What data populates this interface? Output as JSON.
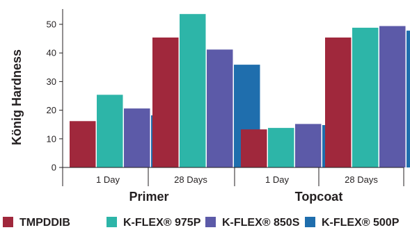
{
  "chart_data": {
    "type": "bar",
    "title": "",
    "ylabel": "König Hardness",
    "xlabel": "",
    "ylim": [
      0,
      56
    ],
    "yticks": [
      0,
      10,
      20,
      30,
      40,
      50
    ],
    "groups": [
      {
        "name": "Primer",
        "categories": [
          "1 Day",
          "28 Days"
        ]
      },
      {
        "name": "Topcoat",
        "categories": [
          "1 Day",
          "28 Days"
        ]
      }
    ],
    "categories": [
      "1 Day",
      "28 Days",
      "1 Day",
      "28 Days"
    ],
    "series": [
      {
        "name": "TMPDDIB",
        "color": "#a0283c",
        "values": [
          16.2,
          45.4,
          13.3,
          45.4
        ]
      },
      {
        "name": "K-FLEX® 975P",
        "color": "#2db5a8",
        "values": [
          25.4,
          53.6,
          13.8,
          48.8
        ]
      },
      {
        "name": "K-FLEX® 850S",
        "color": "#5c5aa8",
        "values": [
          20.6,
          41.2,
          15.2,
          49.4
        ]
      },
      {
        "name": "K-FLEX® 500P",
        "color": "#1f6ead",
        "values": [
          18.2,
          35.9,
          14.8,
          47.8
        ]
      }
    ],
    "legend_position": "bottom",
    "grid": false
  }
}
